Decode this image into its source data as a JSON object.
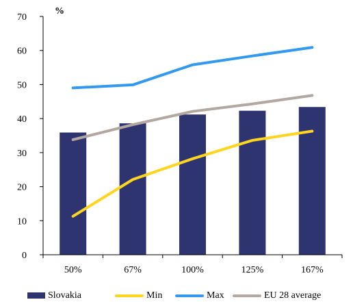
{
  "chart_data": {
    "type": "bar+line",
    "unit_label": "%",
    "categories": [
      "50%",
      "67%",
      "100%",
      "125%",
      "167%"
    ],
    "ylim": [
      0,
      70
    ],
    "yticks": [
      0,
      10,
      20,
      30,
      40,
      50,
      60,
      70
    ],
    "grid": false,
    "legend_position": "bottom",
    "series": [
      {
        "name": "Slovakia",
        "kind": "bar",
        "color": "#2E3470",
        "values": [
          35.9,
          38.6,
          41.2,
          42.3,
          43.4
        ]
      },
      {
        "name": "Min",
        "kind": "line",
        "color": "#FFD51F",
        "values": [
          11.3,
          22.1,
          28.2,
          33.6,
          36.3
        ]
      },
      {
        "name": "Max",
        "kind": "line",
        "color": "#3399EE",
        "values": [
          49.0,
          49.9,
          55.8,
          58.4,
          60.9
        ]
      },
      {
        "name": "EU 28 average",
        "kind": "line",
        "color": "#B3A7A1",
        "values": [
          33.8,
          38.2,
          42.1,
          44.3,
          46.8
        ]
      }
    ]
  }
}
